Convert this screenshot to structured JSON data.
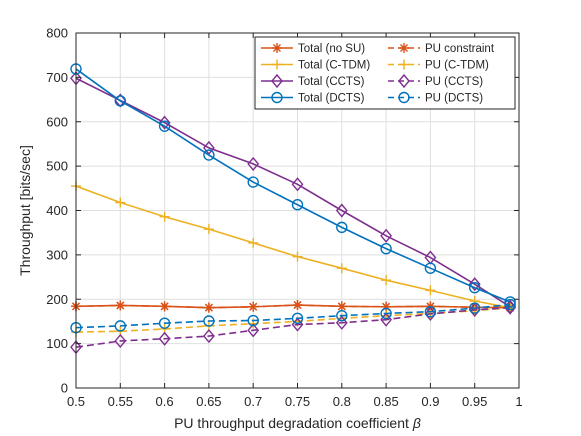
{
  "chart_data": {
    "type": "line",
    "xlabel": "PU throughput degradation coefficient",
    "xlabel_symbol": "β",
    "ylabel": "Throughput [bits/sec]",
    "xlim": [
      0.5,
      1.0
    ],
    "ylim": [
      0,
      800
    ],
    "x_ticks": [
      "0.5",
      "0.55",
      "0.6",
      "0.65",
      "0.7",
      "0.75",
      "0.8",
      "0.85",
      "0.9",
      "0.95",
      "1"
    ],
    "y_ticks": [
      "0",
      "100",
      "200",
      "300",
      "400",
      "500",
      "600",
      "700",
      "800"
    ],
    "grid": true,
    "legend_position": "top-right",
    "x": [
      0.5,
      0.55,
      0.6,
      0.65,
      0.7,
      0.75,
      0.8,
      0.85,
      0.9,
      0.95,
      0.99
    ],
    "series": [
      {
        "name": "Total (no SU)",
        "color": "#D95319",
        "dash": "solid",
        "marker": "asterisk",
        "values": [
          184,
          186,
          184,
          181,
          183,
          187,
          184,
          183,
          184,
          182,
          181
        ]
      },
      {
        "name": "PU constraint",
        "color": "#D95319",
        "dash": "dashed",
        "marker": "asterisk",
        "values": [
          184,
          186,
          184,
          181,
          183,
          187,
          184,
          183,
          184,
          182,
          181
        ]
      },
      {
        "name": "Total (C-TDM)",
        "color": "#EDB120",
        "dash": "solid",
        "marker": "plus",
        "values": [
          455,
          418,
          386,
          358,
          327,
          296,
          270,
          243,
          220,
          196,
          181
        ]
      },
      {
        "name": "PU (C-TDM)",
        "color": "#EDB120",
        "dash": "dashed",
        "marker": "plus",
        "values": [
          126,
          128,
          133,
          140,
          145,
          150,
          157,
          163,
          168,
          174,
          181
        ]
      },
      {
        "name": "Total (CCTS)",
        "color": "#7E2F8E",
        "dash": "solid",
        "marker": "diamond",
        "values": [
          698,
          648,
          598,
          541,
          505,
          459,
          400,
          343,
          294,
          234,
          183
        ]
      },
      {
        "name": "PU (CCTS)",
        "color": "#7E2F8E",
        "dash": "dashed",
        "marker": "diamond",
        "values": [
          92,
          106,
          111,
          117,
          130,
          143,
          147,
          154,
          167,
          176,
          181
        ]
      },
      {
        "name": "Total (DCTS)",
        "color": "#0072BD",
        "dash": "solid",
        "marker": "circle",
        "values": [
          719,
          647,
          590,
          525,
          464,
          413,
          362,
          314,
          270,
          226,
          194
        ]
      },
      {
        "name": "PU (DCTS)",
        "color": "#0072BD",
        "dash": "dashed",
        "marker": "circle",
        "values": [
          136,
          140,
          146,
          151,
          152,
          157,
          163,
          168,
          172,
          180,
          188
        ]
      }
    ]
  }
}
